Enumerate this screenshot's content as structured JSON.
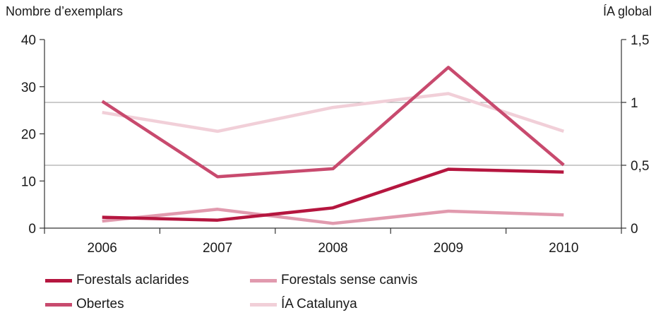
{
  "chart_data": {
    "type": "line",
    "categories": [
      "2006",
      "2007",
      "2008",
      "2009",
      "2010"
    ],
    "ylabel_left": "Nombre d’exemplars",
    "ylabel_right": "ÍA global",
    "ylim_left": [
      0,
      40
    ],
    "ylim_right": [
      0,
      1.5
    ],
    "yticks_left": [
      "0",
      "10",
      "20",
      "30",
      "40"
    ],
    "yticks_right": [
      "0",
      "0,5",
      "1",
      "1,5"
    ],
    "grid": "horizontal lines at right-axis 0,5 and 1",
    "legend_position": "bottom",
    "series": [
      {
        "name": "Forestals aclarides",
        "axis": "left",
        "color": "#b5163f",
        "values": [
          2.3,
          1.7,
          4.3,
          12.5,
          11.9
        ]
      },
      {
        "name": "Forestals sense canvis",
        "axis": "left",
        "color": "#e19aae",
        "values": [
          1.5,
          4.0,
          1.0,
          3.6,
          2.8
        ]
      },
      {
        "name": "Obertes",
        "axis": "left",
        "color": "#c84a6e",
        "values": [
          26.9,
          10.9,
          12.6,
          34.1,
          13.4
        ]
      },
      {
        "name": "ÍA Catalunya",
        "axis": "right",
        "color": "#f1cfd8",
        "values": [
          0.92,
          0.77,
          0.96,
          1.07,
          0.77
        ]
      }
    ]
  }
}
